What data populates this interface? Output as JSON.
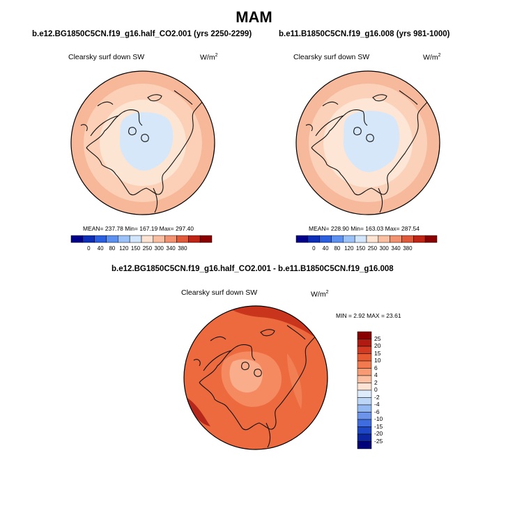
{
  "figure": {
    "title": "MAM"
  },
  "panels": [
    {
      "id": "left",
      "title": "b.e12.BG1850C5CN.f19_g16.half_CO2.001 (yrs 2250-2299)",
      "variable": "Clearsky surf down SW",
      "units": "W/m",
      "units_sup": "2",
      "stats": "MEAN= 237.78  Min= 167.19  Max= 297.40"
    },
    {
      "id": "right",
      "title": "b.e11.B1850C5CN.f19_g16.008 (yrs 981-1000)",
      "variable": "Clearsky surf down SW",
      "units": "W/m",
      "units_sup": "2",
      "stats": "MEAN= 228.90  Min= 163.03  Max= 287.54"
    },
    {
      "id": "diff",
      "title": "b.e12.BG1850C5CN.f19_g16.half_CO2.001 - b.e11.B1850C5CN.f19_g16.008",
      "variable": "Clearsky surf down SW",
      "units": "W/m",
      "units_sup": "2",
      "stats": "MIN =   2.92 MAX =  23.61"
    }
  ],
  "chart_data": [
    {
      "type": "heatmap",
      "projection": "polar-stereographic-north",
      "title": "b.e12.BG1850C5CN.f19_g16.half_CO2.001 (yrs 2250-2299)",
      "variable": "Clearsky surf down SW",
      "units": "W/m2",
      "mean": 237.78,
      "min": 167.19,
      "max": 297.4,
      "colorbar": {
        "levels": [
          "0",
          "40",
          "80",
          "120",
          "150",
          "250",
          "300",
          "340",
          "380"
        ],
        "colors": [
          "#00008a",
          "#0d2fb8",
          "#2a5fe0",
          "#5b8ff0",
          "#9bc2f8",
          "#d2e6fb",
          "#fde4d2",
          "#f9bfa0",
          "#f29270",
          "#e05a3a",
          "#c02414",
          "#8a0000"
        ]
      }
    },
    {
      "type": "heatmap",
      "projection": "polar-stereographic-north",
      "title": "b.e11.B1850C5CN.f19_g16.008 (yrs 981-1000)",
      "variable": "Clearsky surf down SW",
      "units": "W/m2",
      "mean": 228.9,
      "min": 163.03,
      "max": 287.54,
      "colorbar": {
        "levels": [
          "0",
          "40",
          "80",
          "120",
          "150",
          "250",
          "300",
          "340",
          "380"
        ],
        "colors": [
          "#00008a",
          "#0d2fb8",
          "#2a5fe0",
          "#5b8ff0",
          "#9bc2f8",
          "#d2e6fb",
          "#fde4d2",
          "#f9bfa0",
          "#f29270",
          "#e05a3a",
          "#c02414",
          "#8a0000"
        ]
      }
    },
    {
      "type": "heatmap",
      "projection": "polar-stereographic-north",
      "title": "b.e12.BG1850C5CN.f19_g16.half_CO2.001 - b.e11.B1850C5CN.f19_g16.008",
      "variable": "Clearsky surf down SW",
      "units": "W/m2",
      "min": 2.92,
      "max": 23.61,
      "colorbar": {
        "orientation": "vertical",
        "levels": [
          "25",
          "20",
          "15",
          "10",
          "6",
          "4",
          "2",
          "0",
          "-2",
          "-4",
          "-6",
          "-10",
          "-15",
          "-20",
          "-25"
        ],
        "colors": [
          "#8a0000",
          "#b01a10",
          "#d23a22",
          "#e85a32",
          "#f27a4e",
          "#f79b74",
          "#fbc0a2",
          "#fde3d3",
          "#deebfb",
          "#bcd6f7",
          "#94b8f2",
          "#6b94ea",
          "#3f6ddf",
          "#1e47c6",
          "#0c25a0",
          "#00007a"
        ]
      }
    }
  ]
}
